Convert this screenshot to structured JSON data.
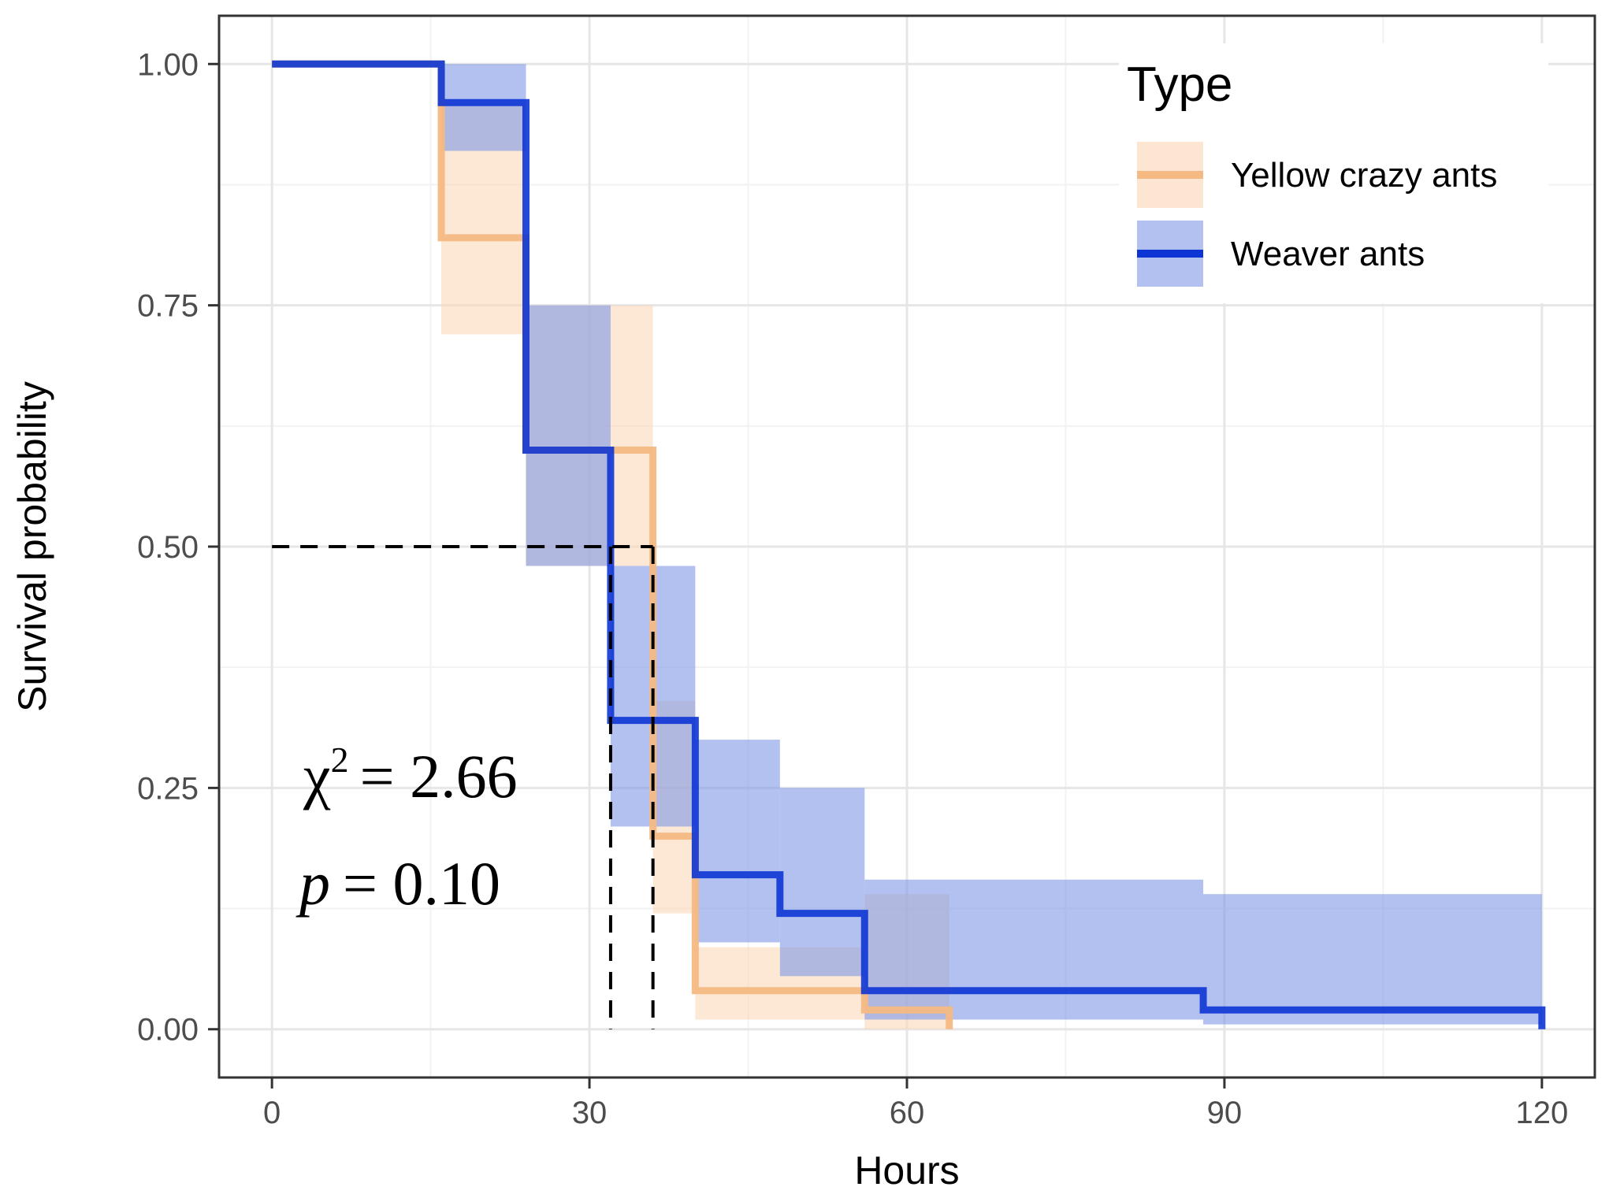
{
  "chart_data": {
    "type": "line",
    "subtype": "kaplan-meier step survival curves with confidence bands",
    "title": "",
    "xlabel": "Hours",
    "ylabel": "Survival probability",
    "xlim": [
      -5,
      125
    ],
    "ylim": [
      -0.05,
      1.05
    ],
    "x_ticks": [
      0,
      30,
      60,
      90,
      120
    ],
    "x_tick_labels": [
      "0",
      "30",
      "60",
      "90",
      "120"
    ],
    "y_ticks": [
      0,
      0.25,
      0.5,
      0.75,
      1.0
    ],
    "y_tick_labels": [
      "0.00",
      "0.25",
      "0.50",
      "0.75",
      "1.00"
    ],
    "grid": true,
    "legend": {
      "title": "Type",
      "position": "top-right",
      "entries": [
        "Yellow crazy ants",
        "Weaver ants"
      ]
    },
    "series": [
      {
        "name": "Yellow crazy ants",
        "color": "#f5b983",
        "fill_color": "#fbd6b3",
        "times": [
          0,
          16,
          24,
          36,
          40,
          56,
          64
        ],
        "survival": [
          1.0,
          0.82,
          0.6,
          0.2,
          0.04,
          0.02,
          0.0
        ],
        "ci_lower": [
          1.0,
          0.72,
          0.48,
          0.12,
          0.01,
          0.0,
          0.0
        ],
        "ci_upper": [
          1.0,
          0.96,
          0.75,
          0.34,
          0.085,
          0.14,
          0.0
        ]
      },
      {
        "name": "Weaver ants",
        "color": "#0d35d4",
        "fill_color": "#7f98e6",
        "times": [
          0,
          16,
          24,
          32,
          40,
          48,
          56,
          88,
          120
        ],
        "survival": [
          1.0,
          0.96,
          0.6,
          0.32,
          0.16,
          0.12,
          0.04,
          0.02,
          0.0
        ],
        "ci_lower": [
          1.0,
          0.91,
          0.48,
          0.21,
          0.09,
          0.055,
          0.01,
          0.005,
          0.0
        ],
        "ci_upper": [
          1.0,
          1.0,
          0.75,
          0.48,
          0.3,
          0.25,
          0.155,
          0.14,
          0.0
        ]
      }
    ],
    "median_lines": {
      "y": 0.5,
      "x_values": [
        32,
        36
      ],
      "style": "dashed"
    },
    "annotations": {
      "chi_symbol": "χ",
      "chi_exponent": "2",
      "chi_value": "= 2.66",
      "p_symbol": "p",
      "p_value": "= 0.10"
    }
  }
}
